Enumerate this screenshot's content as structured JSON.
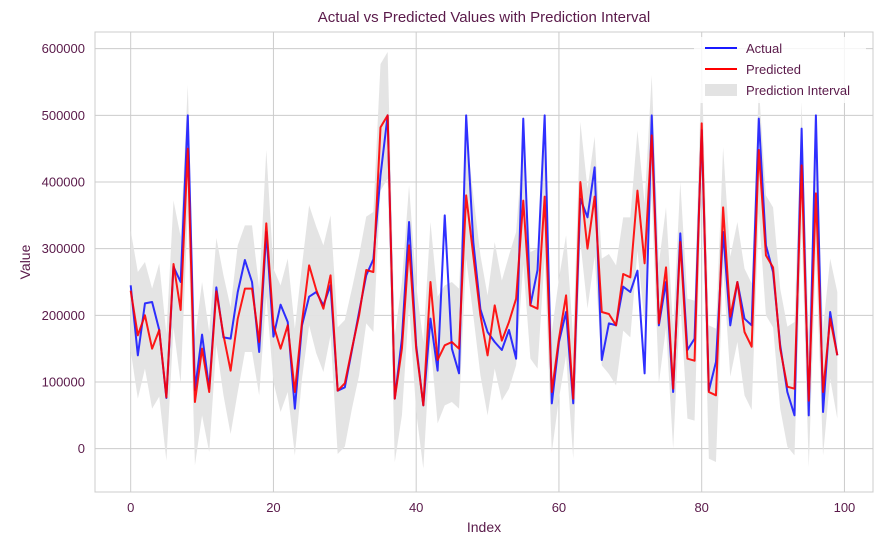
{
  "chart_data": {
    "type": "line",
    "title": "Actual vs Predicted Values with Prediction Interval",
    "xlabel": "Index",
    "ylabel": "Value",
    "xlim": [
      -5,
      104
    ],
    "ylim": [
      -65000,
      625000
    ],
    "x_ticks": [
      0,
      20,
      40,
      60,
      80,
      100
    ],
    "y_ticks": [
      0,
      100000,
      200000,
      300000,
      400000,
      500000,
      600000
    ],
    "x_tick_labels": [
      "0",
      "20",
      "40",
      "60",
      "80",
      "100"
    ],
    "y_tick_labels": [
      "0",
      "100000",
      "200000",
      "300000",
      "400000",
      "500000",
      "600000"
    ],
    "grid": true,
    "legend_position": "top-right",
    "text_color": "#5a1a4a",
    "series": [
      {
        "name": "Actual",
        "color": "#1a1aff",
        "values": [
          245000,
          140000,
          218000,
          220000,
          178000,
          76000,
          273000,
          250000,
          500000,
          88000,
          171000,
          90000,
          242000,
          167000,
          165000,
          235000,
          283000,
          250000,
          145000,
          325000,
          168000,
          216000,
          190000,
          60000,
          185000,
          228000,
          235000,
          215000,
          245000,
          87000,
          92000,
          148000,
          205000,
          260000,
          284000,
          410000,
          500000,
          75000,
          165000,
          340000,
          155000,
          65000,
          195000,
          117000,
          350000,
          150000,
          113000,
          500000,
          310000,
          209000,
          175000,
          160000,
          148000,
          178000,
          135000,
          495000,
          215000,
          268000,
          500000,
          68000,
          160000,
          205000,
          68000,
          375000,
          347000,
          422000,
          133000,
          188000,
          185000,
          243000,
          235000,
          267000,
          113000,
          500000,
          185000,
          250000,
          85000,
          323000,
          148000,
          165000,
          478000,
          87000,
          130000,
          325000,
          185000,
          250000,
          195000,
          185000,
          495000,
          305000,
          265000,
          155000,
          85000,
          50000,
          480000,
          50000,
          500000,
          55000,
          205000,
          140000
        ]
      },
      {
        "name": "Predicted",
        "color": "#ff0000",
        "values": [
          237000,
          170000,
          200000,
          150000,
          178000,
          77000,
          277000,
          208000,
          450000,
          70000,
          150000,
          85000,
          236000,
          170000,
          117000,
          195000,
          240000,
          240000,
          160000,
          338000,
          185000,
          150000,
          185000,
          85000,
          190000,
          275000,
          238000,
          210000,
          260000,
          87000,
          98000,
          150000,
          200000,
          268000,
          265000,
          482000,
          500000,
          75000,
          150000,
          305000,
          150000,
          65000,
          250000,
          133000,
          155000,
          160000,
          150000,
          380000,
          290000,
          200000,
          140000,
          215000,
          162000,
          190000,
          225000,
          372000,
          215000,
          210000,
          378000,
          85000,
          165000,
          230000,
          75000,
          400000,
          300000,
          378000,
          205000,
          202000,
          185000,
          262000,
          257000,
          387000,
          278000,
          470000,
          188000,
          272000,
          90000,
          310000,
          135000,
          132000,
          488000,
          85000,
          80000,
          362000,
          198000,
          250000,
          175000,
          153000,
          448000,
          290000,
          272000,
          150000,
          93000,
          90000,
          425000,
          72000,
          383000,
          85000,
          195000,
          140000
        ]
      }
    ],
    "interval": {
      "name": "Prediction Interval",
      "color": "#e3e3e3",
      "half_width": [
        90000,
        95000,
        80000,
        90000,
        100000,
        95000,
        95000,
        110000,
        95000,
        95000,
        100000,
        90000,
        80000,
        90000,
        95000,
        110000,
        95000,
        95000,
        80000,
        110000,
        85000,
        95000,
        100000,
        95000,
        85000,
        90000,
        95000,
        95000,
        90000,
        95000,
        95000,
        90000,
        90000,
        80000,
        90000,
        95000,
        95000,
        95000,
        100000,
        90000,
        95000,
        95000,
        90000,
        95000,
        90000,
        90000,
        90000,
        95000,
        90000,
        90000,
        90000,
        95000,
        90000,
        100000,
        100000,
        95000,
        80000,
        90000,
        90000,
        90000,
        90000,
        90000,
        90000,
        90000,
        90000,
        90000,
        80000,
        90000,
        90000,
        85000,
        90000,
        90000,
        90000,
        90000,
        90000,
        90000,
        90000,
        90000,
        90000,
        90000,
        90000,
        100000,
        100000,
        90000,
        90000,
        90000,
        95000,
        95000,
        95000,
        90000,
        90000,
        90000,
        90000,
        100000,
        95000,
        100000,
        90000,
        95000,
        90000,
        95000
      ]
    }
  }
}
